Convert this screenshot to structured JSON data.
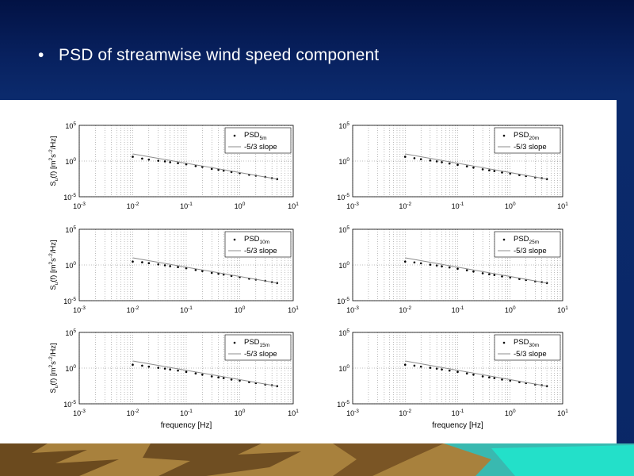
{
  "slide": {
    "bullet": "•",
    "title": "PSD of streamwise wind speed component"
  },
  "colors": {
    "background_top": "#021244",
    "background": "#0a2766",
    "panel": "#ffffff",
    "points": "#000000",
    "reference_line": "#8c8c8c",
    "grid": "#7a7a7a"
  },
  "chart_data": [
    {
      "type": "scatter",
      "log_x": true,
      "log_y": true,
      "xlim": [
        0.001,
        10
      ],
      "ylim": [
        1e-05,
        100000
      ],
      "grid": true,
      "legend": "top-right",
      "ylabel": "S_u(f) [m^2s^-2/Hz]",
      "xlabel": "",
      "series": [
        {
          "name": "PSD_5m",
          "label_main": "PSD",
          "label_sub": "5m",
          "style": "points",
          "x": [
            0.01,
            0.015,
            0.02,
            0.03,
            0.04,
            0.05,
            0.07,
            0.1,
            0.15,
            0.2,
            0.3,
            0.4,
            0.5,
            0.7,
            1,
            1.5,
            2,
            3,
            4,
            5
          ],
          "y": [
            4,
            2.2,
            1.6,
            1.1,
            0.9,
            0.7,
            0.5,
            0.35,
            0.2,
            0.15,
            0.08,
            0.06,
            0.045,
            0.03,
            0.02,
            0.012,
            0.009,
            0.006,
            0.004,
            0.003
          ]
        },
        {
          "name": "-5/3 slope",
          "style": "line",
          "x": [
            0.01,
            5
          ],
          "y": [
            10,
            0.003
          ]
        }
      ]
    },
    {
      "type": "scatter",
      "log_x": true,
      "log_y": true,
      "xlim": [
        0.001,
        10
      ],
      "ylim": [
        1e-05,
        100000
      ],
      "grid": true,
      "legend": "top-right",
      "ylabel": "",
      "xlabel": "",
      "series": [
        {
          "name": "PSD_20m",
          "label_main": "PSD",
          "label_sub": "20m",
          "style": "points",
          "x": [
            0.01,
            0.015,
            0.02,
            0.03,
            0.04,
            0.05,
            0.07,
            0.1,
            0.15,
            0.2,
            0.3,
            0.4,
            0.5,
            0.7,
            1,
            1.5,
            2,
            3,
            4,
            5
          ],
          "y": [
            4,
            2.5,
            1.8,
            1.2,
            0.9,
            0.7,
            0.45,
            0.3,
            0.18,
            0.12,
            0.07,
            0.05,
            0.04,
            0.025,
            0.018,
            0.011,
            0.008,
            0.005,
            0.004,
            0.003
          ]
        },
        {
          "name": "-5/3 slope",
          "style": "line",
          "x": [
            0.01,
            5
          ],
          "y": [
            10,
            0.003
          ]
        }
      ]
    },
    {
      "type": "scatter",
      "log_x": true,
      "log_y": true,
      "xlim": [
        0.001,
        10
      ],
      "ylim": [
        1e-05,
        100000
      ],
      "grid": true,
      "legend": "top-right",
      "ylabel": "S_u(f) [m^2s^-2/Hz]",
      "xlabel": "",
      "series": [
        {
          "name": "PSD_10m",
          "label_main": "PSD",
          "label_sub": "10m",
          "style": "points",
          "x": [
            0.01,
            0.015,
            0.02,
            0.03,
            0.04,
            0.05,
            0.07,
            0.1,
            0.15,
            0.2,
            0.3,
            0.4,
            0.5,
            0.7,
            1,
            1.5,
            2,
            3,
            4,
            5
          ],
          "y": [
            3,
            2.4,
            1.8,
            1.2,
            0.9,
            0.7,
            0.5,
            0.35,
            0.2,
            0.14,
            0.08,
            0.06,
            0.045,
            0.03,
            0.02,
            0.012,
            0.009,
            0.006,
            0.004,
            0.003
          ]
        },
        {
          "name": "-5/3 slope",
          "style": "line",
          "x": [
            0.01,
            5
          ],
          "y": [
            10,
            0.003
          ]
        }
      ]
    },
    {
      "type": "scatter",
      "log_x": true,
      "log_y": true,
      "xlim": [
        0.001,
        10
      ],
      "ylim": [
        1e-05,
        100000
      ],
      "grid": true,
      "legend": "top-right",
      "ylabel": "",
      "xlabel": "",
      "series": [
        {
          "name": "PSD_25m",
          "label_main": "PSD",
          "label_sub": "25m",
          "style": "points",
          "x": [
            0.01,
            0.015,
            0.02,
            0.03,
            0.04,
            0.05,
            0.07,
            0.1,
            0.15,
            0.2,
            0.3,
            0.4,
            0.5,
            0.7,
            1,
            1.5,
            2,
            3,
            4,
            5
          ],
          "y": [
            3,
            2.3,
            1.7,
            1.1,
            0.85,
            0.65,
            0.45,
            0.3,
            0.18,
            0.12,
            0.07,
            0.05,
            0.04,
            0.025,
            0.018,
            0.011,
            0.008,
            0.005,
            0.004,
            0.003
          ]
        },
        {
          "name": "-5/3 slope",
          "style": "line",
          "x": [
            0.01,
            5
          ],
          "y": [
            10,
            0.003
          ]
        }
      ]
    },
    {
      "type": "scatter",
      "log_x": true,
      "log_y": true,
      "xlim": [
        0.001,
        10
      ],
      "ylim": [
        1e-05,
        100000
      ],
      "grid": true,
      "legend": "top-right",
      "ylabel": "S_u(f) [m^2s^-2/Hz]",
      "xlabel": "frequency [Hz]",
      "series": [
        {
          "name": "PSD_15m",
          "label_main": "PSD",
          "label_sub": "15m",
          "style": "points",
          "x": [
            0.01,
            0.015,
            0.02,
            0.03,
            0.04,
            0.05,
            0.07,
            0.1,
            0.15,
            0.2,
            0.3,
            0.4,
            0.5,
            0.7,
            1,
            1.5,
            2,
            3,
            4,
            5
          ],
          "y": [
            3,
            2.2,
            1.6,
            1.1,
            0.85,
            0.65,
            0.45,
            0.3,
            0.18,
            0.12,
            0.07,
            0.05,
            0.04,
            0.025,
            0.018,
            0.011,
            0.008,
            0.005,
            0.004,
            0.003
          ]
        },
        {
          "name": "-5/3 slope",
          "style": "line",
          "x": [
            0.01,
            5
          ],
          "y": [
            10,
            0.003
          ]
        }
      ]
    },
    {
      "type": "scatter",
      "log_x": true,
      "log_y": true,
      "xlim": [
        0.001,
        10
      ],
      "ylim": [
        1e-05,
        100000
      ],
      "grid": true,
      "legend": "top-right",
      "ylabel": "",
      "xlabel": "frequency [Hz]",
      "series": [
        {
          "name": "PSD_30m",
          "label_main": "PSD",
          "label_sub": "30m",
          "style": "points",
          "x": [
            0.01,
            0.015,
            0.02,
            0.03,
            0.04,
            0.05,
            0.07,
            0.1,
            0.15,
            0.2,
            0.3,
            0.4,
            0.5,
            0.7,
            1,
            1.5,
            2,
            3,
            4,
            5
          ],
          "y": [
            3,
            2.2,
            1.6,
            1.1,
            0.85,
            0.65,
            0.45,
            0.3,
            0.18,
            0.12,
            0.07,
            0.05,
            0.04,
            0.025,
            0.018,
            0.011,
            0.008,
            0.005,
            0.004,
            0.003
          ]
        },
        {
          "name": "-5/3 slope",
          "style": "line",
          "x": [
            0.01,
            5
          ],
          "y": [
            10,
            0.003
          ]
        }
      ]
    }
  ]
}
